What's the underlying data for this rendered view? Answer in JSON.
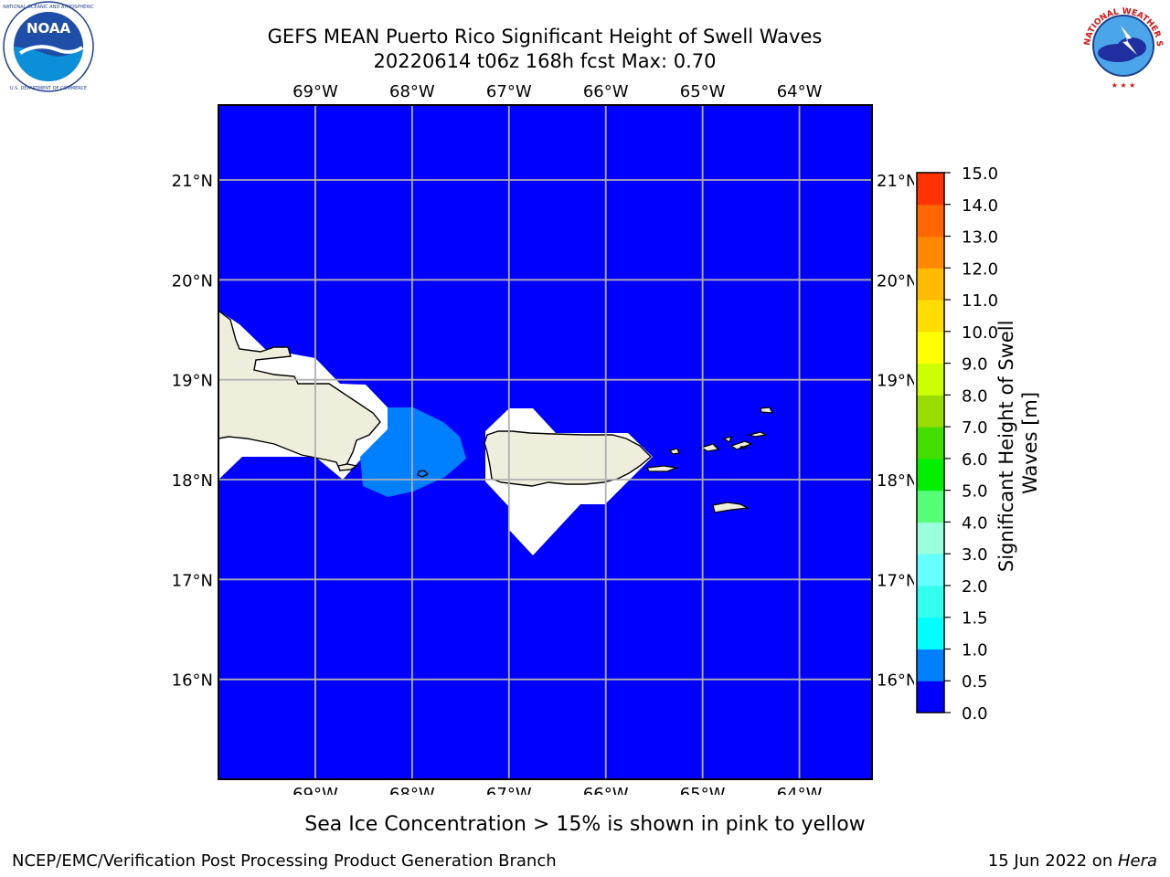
{
  "title_line1": "GEFS MEAN Puerto Rico Significant Height of Swell Waves",
  "title_line2": "20220614 t06z 168h fcst   Max: 0.70",
  "logos": {
    "left": {
      "icon": "noaa-logo",
      "text": "NOAA",
      "ring_text": "NATIONAL OCEANIC AND ATMOSPHERIC ADMINISTRATION · U.S. DEPARTMENT OF COMMERCE"
    },
    "right": {
      "icon": "nws-logo",
      "ring_text": "NATIONAL WEATHER SERVICE"
    }
  },
  "map": {
    "lon_labels": [
      "69°W",
      "68°W",
      "67°W",
      "66°W",
      "65°W",
      "64°W"
    ],
    "lat_labels": [
      "21°N",
      "20°N",
      "19°N",
      "18°N",
      "17°N",
      "16°N"
    ],
    "lon_range": [
      -70.0,
      -63.25
    ],
    "lat_range": [
      15.0,
      21.75
    ],
    "ocean_color": "#0000ff",
    "swell_patch_color": "#0080ff",
    "land_color": "#efeedd",
    "nodata_color": "#ffffff",
    "grid": true
  },
  "colorbar": {
    "label": "Significant Height of Swell Waves [m]",
    "ticks": [
      "0.0",
      "0.5",
      "1.0",
      "1.5",
      "2.0",
      "3.0",
      "4.0",
      "5.0",
      "6.0",
      "7.0",
      "8.0",
      "9.0",
      "10.0",
      "11.0",
      "12.0",
      "13.0",
      "14.0",
      "15.0"
    ],
    "colors": [
      "#0000ff",
      "#0080ff",
      "#00ffff",
      "#33ffee",
      "#66ffff",
      "#99ffdd",
      "#55ff77",
      "#00ee00",
      "#44dd00",
      "#99dd00",
      "#ccff00",
      "#ffff00",
      "#ffdd00",
      "#ffbb00",
      "#ff8800",
      "#ff6600",
      "#ff3300",
      "#ff0000"
    ]
  },
  "footer_note": "Sea Ice Concentration > 15% is shown in pink to yellow",
  "footer_left": "NCEP/EMC/Verification Post Processing Product Generation Branch",
  "footer_right_date": "15 Jun 2022 on ",
  "footer_right_host": "Hera"
}
